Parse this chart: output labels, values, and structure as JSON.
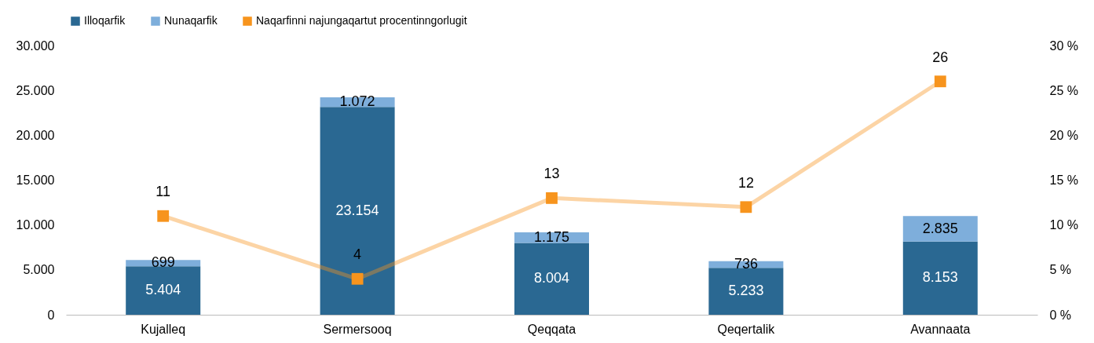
{
  "chart_data": {
    "type": "bar",
    "stacked": true,
    "legend": "top",
    "grid": false,
    "categories": [
      "Kujalleq",
      "Sermersooq",
      "Qeqqata",
      "Qeqertalik",
      "Avannaata"
    ],
    "ylim": [
      0,
      30000
    ],
    "yticks": [
      {
        "value": 0,
        "label": "0"
      },
      {
        "value": 5000,
        "label": "5.000"
      },
      {
        "value": 10000,
        "label": "10.000"
      },
      {
        "value": 15000,
        "label": "15.000"
      },
      {
        "value": 20000,
        "label": "20.000"
      },
      {
        "value": 25000,
        "label": "25.000"
      },
      {
        "value": 30000,
        "label": "30.000"
      }
    ],
    "y2lim": [
      0,
      30
    ],
    "y2ticks": [
      {
        "value": 0,
        "label": "0 %"
      },
      {
        "value": 5,
        "label": "5 %"
      },
      {
        "value": 10,
        "label": "10 %"
      },
      {
        "value": 15,
        "label": "15 %"
      },
      {
        "value": 20,
        "label": "20 %"
      },
      {
        "value": 25,
        "label": "25 %"
      },
      {
        "value": 30,
        "label": "30 %"
      }
    ],
    "series": [
      {
        "name": "Illoqarfik",
        "color": "#2a6892",
        "values": [
          5404,
          23154,
          8004,
          5233,
          8153
        ],
        "value_labels": [
          "5.404",
          "23.154",
          "8.004",
          "5.233",
          "8.153"
        ]
      },
      {
        "name": "Nunaqarfik",
        "color": "#7eaedb",
        "values": [
          699,
          1072,
          1175,
          736,
          2835
        ],
        "value_labels": [
          "699",
          "1.072",
          "1.175",
          "736",
          "2.835"
        ]
      },
      {
        "name": "Naqarfinni najungaqartut procentinngorlugit",
        "type": "line",
        "axis": "y2",
        "marker": "square",
        "line_style": "solid",
        "color": "#f7941d",
        "values": [
          11,
          4,
          13,
          12,
          26
        ],
        "value_labels": [
          "11",
          "4",
          "13",
          "12",
          "26"
        ]
      }
    ]
  }
}
